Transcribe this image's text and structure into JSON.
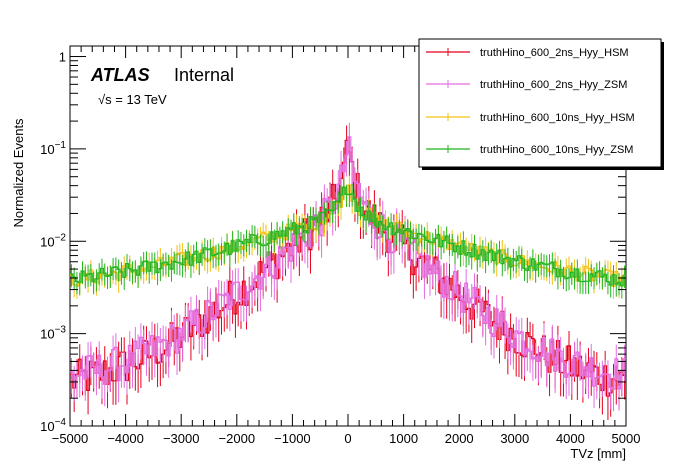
{
  "chart_data": {
    "type": "line",
    "xlabel": "TVz [mm]",
    "ylabel": "Normalized Events",
    "xlim": [
      -5000,
      5000
    ],
    "ylim": [
      0.0001,
      1.3
    ],
    "yscale": "log",
    "x_ticks": [
      -5000,
      -4000,
      -3000,
      -2000,
      -1000,
      0,
      1000,
      2000,
      3000,
      4000,
      5000
    ],
    "x_tick_labels": [
      "−5000",
      "−4000",
      "−3000",
      "−2000",
      "−1000",
      "0",
      "1000",
      "2000",
      "3000",
      "4000",
      "5000"
    ],
    "y_ticks": [
      0.0001,
      0.001,
      0.01,
      0.1,
      1
    ],
    "annotations": {
      "atlas": "ATLAS",
      "status": "Internal",
      "energy": "√s = 13 TeV"
    },
    "legend_position": "top-right",
    "series": [
      {
        "name": "truthHino_600_2ns_Hyy_HSM",
        "color": "#e3001b",
        "shape": "narrow",
        "peak": 0.125,
        "width": 1500,
        "floor": 0.00025,
        "noise": 0.5
      },
      {
        "name": "truthHino_600_2ns_Hyy_ZSM",
        "color": "#e36ce3",
        "shape": "narrow",
        "peak": 0.13,
        "width": 1500,
        "floor": 0.0003,
        "noise": 0.45
      },
      {
        "name": "truthHino_600_10ns_Hyy_HSM",
        "color": "#f2c216",
        "shape": "wide",
        "peak": 0.05,
        "width": 3500,
        "floor": 0.0025,
        "noise": 0.2
      },
      {
        "name": "truthHino_600_10ns_Hyy_ZSM",
        "color": "#1fb51f",
        "shape": "wide",
        "peak": 0.05,
        "width": 3500,
        "floor": 0.0025,
        "noise": 0.2
      }
    ]
  }
}
